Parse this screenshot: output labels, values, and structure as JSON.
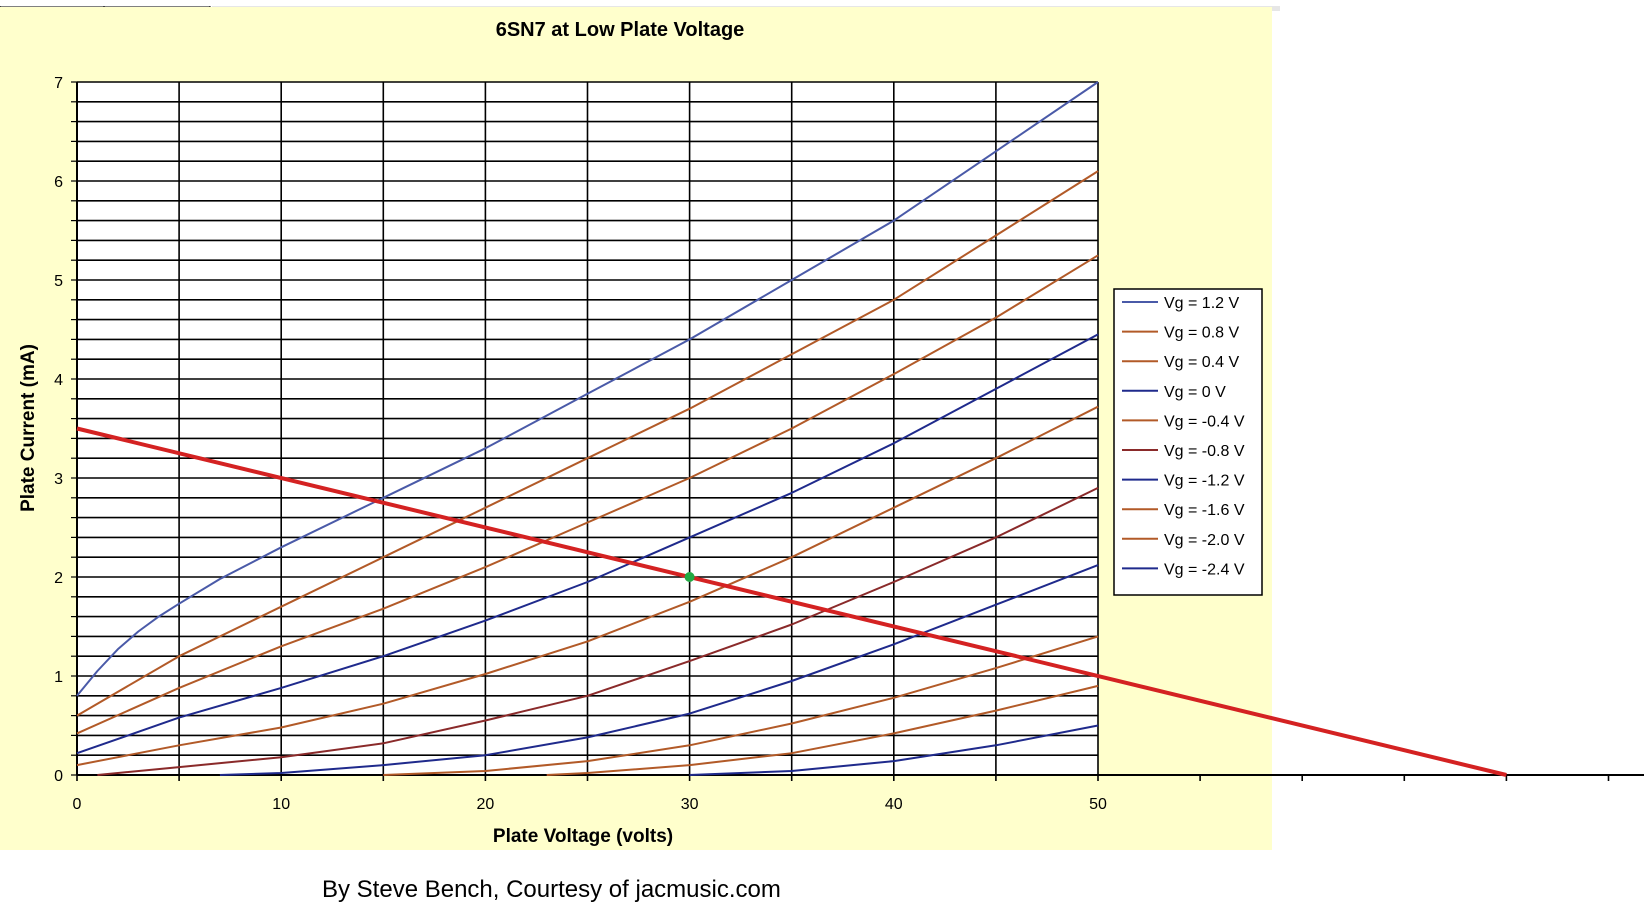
{
  "credit": "By Steve Bench, Courtesy of jacmusic.com",
  "chart_data": {
    "type": "line",
    "title": "6SN7 at Low Plate Voltage",
    "xlabel": "Plate Voltage  (volts)",
    "ylabel": "Plate Current (mA)",
    "xlim": [
      0,
      50
    ],
    "ylim": [
      0,
      7
    ],
    "x_ticks": [
      0,
      10,
      20,
      30,
      40,
      50
    ],
    "y_ticks": [
      0,
      1,
      2,
      3,
      4,
      5,
      6,
      7
    ],
    "grid": true,
    "legend_position": "right",
    "plot_background": "#ffffff",
    "chart_background": "#ffffcc",
    "series": [
      {
        "name": "Vg = 1.2 V",
        "color": "#4a5aa8",
        "x": [
          0,
          1,
          2,
          3,
          4,
          5,
          7,
          10,
          15,
          20,
          25,
          30,
          35,
          40,
          45,
          50
        ],
        "y": [
          0.8,
          1.05,
          1.27,
          1.45,
          1.6,
          1.73,
          1.98,
          2.3,
          2.8,
          3.3,
          3.85,
          4.4,
          5.0,
          5.6,
          6.3,
          7.0
        ]
      },
      {
        "name": "Vg = 0.8 V",
        "color": "#b25a28",
        "x": [
          0,
          5,
          10,
          15,
          20,
          25,
          30,
          35,
          40,
          45,
          50
        ],
        "y": [
          0.6,
          1.2,
          1.7,
          2.2,
          2.7,
          3.2,
          3.7,
          4.25,
          4.8,
          5.45,
          6.1
        ]
      },
      {
        "name": "Vg = 0.4 V",
        "color": "#b25a28",
        "x": [
          0,
          5,
          10,
          15,
          20,
          25,
          30,
          35,
          40,
          45,
          50
        ],
        "y": [
          0.42,
          0.88,
          1.3,
          1.68,
          2.1,
          2.55,
          3.0,
          3.5,
          4.05,
          4.62,
          5.25
        ]
      },
      {
        "name": "Vg = 0 V",
        "color": "#1f2a8c",
        "x": [
          0,
          5,
          10,
          15,
          20,
          25,
          30,
          35,
          40,
          45,
          50
        ],
        "y": [
          0.22,
          0.58,
          0.88,
          1.2,
          1.56,
          1.95,
          2.4,
          2.85,
          3.35,
          3.9,
          4.45
        ]
      },
      {
        "name": "Vg = -0.4 V",
        "color": "#b25a28",
        "x": [
          0,
          5,
          10,
          15,
          20,
          25,
          30,
          35,
          40,
          45,
          50
        ],
        "y": [
          0.1,
          0.3,
          0.48,
          0.72,
          1.02,
          1.35,
          1.75,
          2.2,
          2.7,
          3.2,
          3.72
        ]
      },
      {
        "name": "Vg = -0.8 V",
        "color": "#8a2a2a",
        "x": [
          1,
          5,
          10,
          15,
          20,
          25,
          30,
          35,
          40,
          45,
          50
        ],
        "y": [
          0.0,
          0.08,
          0.18,
          0.32,
          0.55,
          0.8,
          1.15,
          1.52,
          1.95,
          2.4,
          2.9
        ]
      },
      {
        "name": "Vg = -1.2 V",
        "color": "#1f2a8c",
        "x": [
          7,
          10,
          15,
          20,
          25,
          30,
          35,
          40,
          45,
          50
        ],
        "y": [
          0.0,
          0.02,
          0.1,
          0.2,
          0.38,
          0.62,
          0.95,
          1.32,
          1.72,
          2.12
        ]
      },
      {
        "name": "Vg = -1.6 V",
        "color": "#b25a28",
        "x": [
          15,
          20,
          25,
          30,
          35,
          40,
          45,
          50
        ],
        "y": [
          0.0,
          0.04,
          0.14,
          0.3,
          0.52,
          0.78,
          1.08,
          1.4
        ]
      },
      {
        "name": "Vg = -2.0 V",
        "color": "#b25a28",
        "x": [
          23,
          25,
          30,
          35,
          40,
          45,
          50
        ],
        "y": [
          0.0,
          0.02,
          0.1,
          0.22,
          0.42,
          0.65,
          0.9
        ]
      },
      {
        "name": "Vg = -2.4 V",
        "color": "#1f2a8c",
        "x": [
          30,
          35,
          40,
          45,
          50
        ],
        "y": [
          0.0,
          0.04,
          0.14,
          0.3,
          0.5
        ]
      }
    ],
    "load_line": {
      "color": "#d42222",
      "x": [
        0,
        70
      ],
      "y": [
        3.5,
        0
      ]
    },
    "operating_point": {
      "color": "#22aa44",
      "x": 30,
      "y": 2.0
    }
  }
}
